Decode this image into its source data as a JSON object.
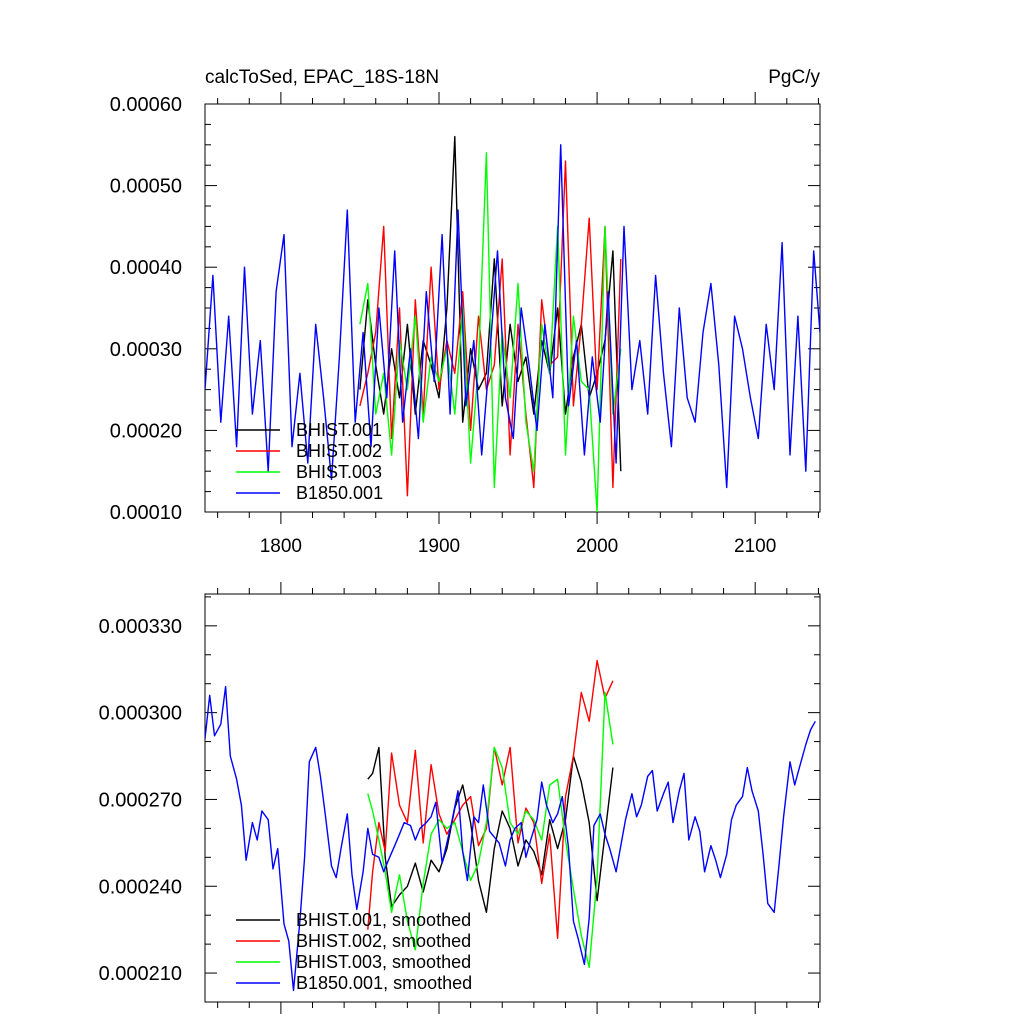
{
  "chart_data": [
    {
      "type": "line",
      "title_left": "calcToSed, EPAC_18S-18N",
      "title_right": "PgC/y",
      "xlim": [
        1752,
        2141
      ],
      "ylim": [
        0.0001,
        0.0006
      ],
      "x_ticks": [
        1800,
        1900,
        2000,
        2100
      ],
      "x_tick_labels": [
        "1800",
        "1900",
        "2000",
        "2100"
      ],
      "y_ticks": [
        0.0001,
        0.0002,
        0.0003,
        0.0004,
        0.0005,
        0.0006
      ],
      "y_tick_labels": [
        "0.00010",
        "0.00020",
        "0.00030",
        "0.00040",
        "0.00050",
        "0.00060"
      ],
      "legend_position": "bottom-left",
      "series": [
        {
          "name": "BHIST.001",
          "color": "#000000",
          "x": [
            1850,
            1855,
            1860,
            1865,
            1870,
            1875,
            1880,
            1885,
            1890,
            1895,
            1900,
            1905,
            1910,
            1915,
            1920,
            1925,
            1930,
            1935,
            1940,
            1945,
            1950,
            1955,
            1960,
            1965,
            1970,
            1975,
            1980,
            1985,
            1990,
            1995,
            2000,
            2005,
            2010,
            2015
          ],
          "values": [
            0.00025,
            0.00036,
            0.00028,
            0.00022,
            0.0003,
            0.00024,
            0.00033,
            0.00022,
            0.00031,
            0.00028,
            0.00024,
            0.00035,
            0.00056,
            0.00021,
            0.0003,
            0.00025,
            0.00027,
            0.00041,
            0.00023,
            0.00033,
            0.00026,
            0.00029,
            0.00022,
            0.00031,
            0.00027,
            0.00035,
            0.00022,
            0.00029,
            0.00033,
            0.00024,
            0.00027,
            0.00031,
            0.00042,
            0.00015
          ]
        },
        {
          "name": "BHIST.002",
          "color": "#ff0000",
          "x": [
            1850,
            1855,
            1860,
            1865,
            1870,
            1875,
            1880,
            1885,
            1890,
            1895,
            1900,
            1905,
            1910,
            1915,
            1920,
            1925,
            1930,
            1935,
            1940,
            1945,
            1950,
            1955,
            1960,
            1965,
            1970,
            1975,
            1980,
            1985,
            1990,
            1995,
            2000,
            2005,
            2010,
            2015
          ],
          "values": [
            0.00023,
            0.00027,
            0.00032,
            0.00045,
            0.00019,
            0.00035,
            0.00012,
            0.00036,
            0.00022,
            0.0004,
            0.00025,
            0.00031,
            0.00027,
            0.00037,
            0.0002,
            0.00034,
            0.00025,
            0.00028,
            0.00041,
            0.00017,
            0.00033,
            0.00022,
            0.00013,
            0.00036,
            0.00028,
            0.00029,
            0.00053,
            0.00023,
            0.00033,
            0.00046,
            0.00025,
            0.00045,
            0.00013,
            0.00041
          ]
        },
        {
          "name": "BHIST.003",
          "color": "#00ff00",
          "x": [
            1850,
            1855,
            1860,
            1865,
            1870,
            1875,
            1880,
            1885,
            1890,
            1895,
            1900,
            1905,
            1910,
            1915,
            1920,
            1925,
            1930,
            1935,
            1940,
            1945,
            1950,
            1955,
            1960,
            1965,
            1970,
            1975,
            1980,
            1985,
            1990,
            1995,
            2000,
            2005,
            2010,
            2015
          ],
          "values": [
            0.00033,
            0.00038,
            0.00022,
            0.00027,
            0.00017,
            0.00031,
            0.00025,
            0.00034,
            0.00021,
            0.00029,
            0.00026,
            0.0003,
            0.00022,
            0.00035,
            0.00016,
            0.00028,
            0.00054,
            0.00013,
            0.00032,
            0.00024,
            0.00038,
            0.00021,
            0.00015,
            0.00033,
            0.00027,
            0.00045,
            0.00017,
            0.00034,
            0.00026,
            0.00025,
            0.0001,
            0.00045,
            0.00022,
            0.0003
          ]
        },
        {
          "name": "B1850.001",
          "color": "#0000ff",
          "x": [
            1752,
            1757,
            1762,
            1767,
            1772,
            1777,
            1782,
            1787,
            1792,
            1797,
            1802,
            1807,
            1812,
            1817,
            1822,
            1827,
            1832,
            1837,
            1842,
            1847,
            1852,
            1857,
            1862,
            1867,
            1872,
            1877,
            1882,
            1887,
            1892,
            1897,
            1902,
            1907,
            1912,
            1917,
            1922,
            1927,
            1932,
            1937,
            1942,
            1947,
            1952,
            1957,
            1962,
            1967,
            1972,
            1977,
            1982,
            1987,
            1992,
            1997,
            2002,
            2007,
            2012,
            2017,
            2022,
            2027,
            2032,
            2037,
            2042,
            2047,
            2052,
            2057,
            2062,
            2067,
            2072,
            2077,
            2082,
            2087,
            2092,
            2097,
            2102,
            2107,
            2112,
            2117,
            2122,
            2127,
            2132,
            2137,
            2141
          ],
          "values": [
            0.00025,
            0.00039,
            0.00021,
            0.00034,
            0.00018,
            0.0004,
            0.00022,
            0.00031,
            0.00015,
            0.00037,
            0.00044,
            0.00018,
            0.00027,
            0.00016,
            0.00033,
            0.00024,
            0.00014,
            0.00029,
            0.00047,
            0.00021,
            0.00032,
            0.00018,
            0.00035,
            0.00024,
            0.00042,
            0.00021,
            0.0003,
            0.00019,
            0.00037,
            0.00026,
            0.00044,
            0.00022,
            0.00047,
            0.00023,
            0.00031,
            0.00017,
            0.00029,
            0.00042,
            0.00024,
            0.00019,
            0.00035,
            0.00028,
            0.0002,
            0.00033,
            0.00024,
            0.00055,
            0.00023,
            0.00031,
            0.00017,
            0.00029,
            0.00021,
            0.00037,
            0.00016,
            0.00045,
            0.00025,
            0.00031,
            0.00022,
            0.00039,
            0.00027,
            0.00018,
            0.00035,
            0.00024,
            0.00021,
            0.00032,
            0.00038,
            0.00028,
            0.00013,
            0.00034,
            0.0003,
            0.00024,
            0.00019,
            0.00033,
            0.00025,
            0.00043,
            0.00017,
            0.00034,
            0.00015,
            0.00042,
            0.00032
          ]
        }
      ]
    },
    {
      "type": "line",
      "xlim": [
        1752,
        2141
      ],
      "ylim": [
        0.0002,
        0.000341
      ],
      "x_ticks": [
        1800,
        1900,
        2000,
        2100
      ],
      "y_ticks": [
        0.00021,
        0.00024,
        0.00027,
        0.0003,
        0.00033
      ],
      "y_tick_labels": [
        "0.000210",
        "0.000240",
        "0.000270",
        "0.000300",
        "0.000330"
      ],
      "legend_position": "bottom-left",
      "series": [
        {
          "name": "BHIST.001, smoothed",
          "color": "#000000",
          "x": [
            1855,
            1858,
            1862,
            1866,
            1870,
            1875,
            1880,
            1885,
            1890,
            1895,
            1900,
            1905,
            1910,
            1915,
            1920,
            1925,
            1930,
            1935,
            1940,
            1945,
            1950,
            1955,
            1960,
            1965,
            1970,
            1975,
            1980,
            1985,
            1990,
            1995,
            2000,
            2005,
            2010
          ],
          "values": [
            0.000277,
            0.000279,
            0.000288,
            0.00025,
            0.000233,
            0.000237,
            0.00024,
            0.000248,
            0.000238,
            0.000249,
            0.000245,
            0.000253,
            0.000267,
            0.000275,
            0.000262,
            0.000242,
            0.000231,
            0.000253,
            0.000266,
            0.00026,
            0.000247,
            0.000256,
            0.000252,
            0.000244,
            0.000263,
            0.000253,
            0.000263,
            0.000285,
            0.000276,
            0.000262,
            0.000235,
            0.000258,
            0.000281
          ]
        },
        {
          "name": "BHIST.002, smoothed",
          "color": "#ff0000",
          "x": [
            1855,
            1858,
            1862,
            1866,
            1870,
            1875,
            1880,
            1885,
            1890,
            1895,
            1900,
            1905,
            1910,
            1915,
            1920,
            1925,
            1930,
            1935,
            1940,
            1945,
            1950,
            1955,
            1960,
            1965,
            1970,
            1975,
            1980,
            1985,
            1990,
            1995,
            2000,
            2005,
            2010
          ],
          "values": [
            0.000225,
            0.000245,
            0.000262,
            0.000252,
            0.000286,
            0.000268,
            0.000262,
            0.000287,
            0.000255,
            0.000282,
            0.000265,
            0.000258,
            0.000263,
            0.000268,
            0.000271,
            0.000254,
            0.00026,
            0.000288,
            0.000275,
            0.000288,
            0.000255,
            0.000267,
            0.000262,
            0.000241,
            0.000258,
            0.000222,
            0.000271,
            0.000285,
            0.000307,
            0.000297,
            0.000318,
            0.000305,
            0.000311
          ]
        },
        {
          "name": "BHIST.003, smoothed",
          "color": "#00ff00",
          "x": [
            1855,
            1858,
            1862,
            1866,
            1870,
            1875,
            1880,
            1885,
            1890,
            1895,
            1900,
            1905,
            1910,
            1915,
            1920,
            1925,
            1930,
            1935,
            1940,
            1945,
            1950,
            1955,
            1960,
            1965,
            1970,
            1975,
            1980,
            1985,
            1990,
            1995,
            2000,
            2005,
            2010
          ],
          "values": [
            0.000272,
            0.000266,
            0.000256,
            0.000245,
            0.000231,
            0.000244,
            0.000228,
            0.000218,
            0.000241,
            0.000258,
            0.000263,
            0.00026,
            0.000262,
            0.000252,
            0.000242,
            0.000248,
            0.000262,
            0.000288,
            0.000281,
            0.000262,
            0.000258,
            0.000266,
            0.000263,
            0.000256,
            0.000275,
            0.000277,
            0.000256,
            0.000239,
            0.000223,
            0.000212,
            0.000243,
            0.000307,
            0.000289
          ]
        },
        {
          "name": "B1850.001, smoothed",
          "color": "#0000ff",
          "x": [
            1752,
            1755,
            1758,
            1762,
            1765,
            1768,
            1772,
            1775,
            1778,
            1782,
            1785,
            1788,
            1792,
            1795,
            1798,
            1802,
            1805,
            1808,
            1812,
            1815,
            1818,
            1822,
            1825,
            1828,
            1832,
            1835,
            1838,
            1842,
            1845,
            1848,
            1852,
            1855,
            1858,
            1862,
            1865,
            1868,
            1872,
            1875,
            1878,
            1882,
            1885,
            1888,
            1892,
            1895,
            1898,
            1902,
            1905,
            1908,
            1912,
            1915,
            1918,
            1922,
            1925,
            1928,
            1932,
            1935,
            1938,
            1942,
            1945,
            1948,
            1952,
            1955,
            1958,
            1962,
            1965,
            1968,
            1972,
            1975,
            1978,
            1982,
            1985,
            1988,
            1992,
            1995,
            1998,
            2002,
            2005,
            2008,
            2012,
            2015,
            2018,
            2022,
            2025,
            2028,
            2032,
            2035,
            2038,
            2042,
            2045,
            2048,
            2052,
            2055,
            2058,
            2062,
            2065,
            2068,
            2072,
            2075,
            2078,
            2082,
            2085,
            2088,
            2092,
            2095,
            2098,
            2102,
            2105,
            2108,
            2112,
            2115,
            2118,
            2122,
            2125,
            2128,
            2132,
            2135,
            2138
          ],
          "values": [
            0.000291,
            0.000306,
            0.000292,
            0.000296,
            0.000309,
            0.000285,
            0.000277,
            0.000268,
            0.000249,
            0.000262,
            0.000256,
            0.000266,
            0.000263,
            0.000246,
            0.000253,
            0.000227,
            0.000221,
            0.000204,
            0.000228,
            0.00025,
            0.000283,
            0.000288,
            0.000278,
            0.000265,
            0.000247,
            0.000243,
            0.000253,
            0.000265,
            0.000244,
            0.000232,
            0.000245,
            0.00026,
            0.000251,
            0.00025,
            0.000245,
            0.000249,
            0.000254,
            0.000258,
            0.000262,
            0.000261,
            0.000256,
            0.00026,
            0.000262,
            0.000264,
            0.000269,
            0.000248,
            0.000255,
            0.000262,
            0.000273,
            0.000252,
            0.000242,
            0.000264,
            0.000262,
            0.000275,
            0.000259,
            0.000257,
            0.000255,
            0.000247,
            0.000256,
            0.00026,
            0.000262,
            0.00025,
            0.000256,
            0.000263,
            0.000276,
            0.000268,
            0.000262,
            0.000265,
            0.000271,
            0.000253,
            0.000228,
            0.000222,
            0.000213,
            0.000229,
            0.000261,
            0.000265,
            0.000258,
            0.000253,
            0.000245,
            0.000254,
            0.000263,
            0.000272,
            0.000264,
            0.000268,
            0.000278,
            0.00028,
            0.000266,
            0.000272,
            0.000276,
            0.000262,
            0.000273,
            0.000279,
            0.000256,
            0.000264,
            0.000259,
            0.000245,
            0.000254,
            0.000249,
            0.000243,
            0.000251,
            0.000263,
            0.000268,
            0.000271,
            0.000281,
            0.000273,
            0.000266,
            0.000251,
            0.000234,
            0.000231,
            0.000247,
            0.000264,
            0.000283,
            0.000275,
            0.000281,
            0.000289,
            0.000294,
            0.000297
          ]
        }
      ]
    }
  ]
}
